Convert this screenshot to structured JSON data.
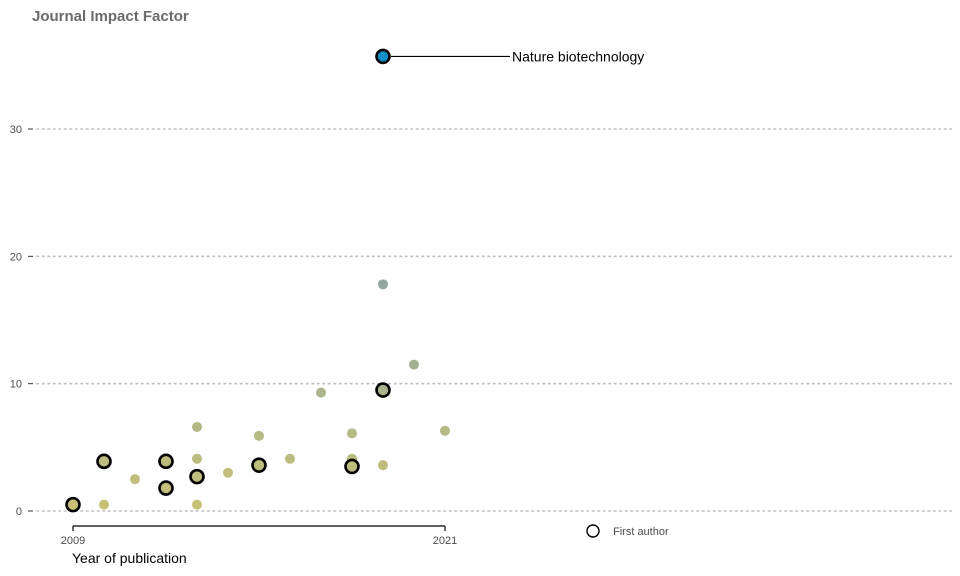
{
  "chart_data": {
    "type": "scatter",
    "title": "Journal Impact Factor",
    "xlabel": "Year of publication",
    "ylabel": "",
    "xlim": [
      2009,
      2021
    ],
    "ylim": [
      0,
      36
    ],
    "x_ticks": [
      2009,
      2021
    ],
    "y_ticks": [
      0,
      10,
      20,
      30
    ],
    "grid": "horizontal dotted",
    "color_scale": {
      "low": "#c8c276",
      "mid": "#8fa8a0",
      "high": "#0a8fc8"
    },
    "points": [
      {
        "x": 2009,
        "y": 0.5,
        "first_author": true
      },
      {
        "x": 2010,
        "y": 0.5,
        "first_author": false
      },
      {
        "x": 2010,
        "y": 3.9,
        "first_author": true
      },
      {
        "x": 2011,
        "y": 2.5,
        "first_author": false
      },
      {
        "x": 2012,
        "y": 1.8,
        "first_author": true
      },
      {
        "x": 2012,
        "y": 3.9,
        "first_author": true
      },
      {
        "x": 2012,
        "y": 3.7,
        "first_author": false
      },
      {
        "x": 2013,
        "y": 0.5,
        "first_author": false
      },
      {
        "x": 2013,
        "y": 2.7,
        "first_author": true
      },
      {
        "x": 2013,
        "y": 4.1,
        "first_author": false
      },
      {
        "x": 2013,
        "y": 6.6,
        "first_author": false
      },
      {
        "x": 2014,
        "y": 3.0,
        "first_author": false
      },
      {
        "x": 2015,
        "y": 3.6,
        "first_author": true
      },
      {
        "x": 2015,
        "y": 5.9,
        "first_author": false
      },
      {
        "x": 2016,
        "y": 4.1,
        "first_author": false
      },
      {
        "x": 2017,
        "y": 9.3,
        "first_author": false
      },
      {
        "x": 2018,
        "y": 3.5,
        "first_author": true
      },
      {
        "x": 2018,
        "y": 4.1,
        "first_author": false
      },
      {
        "x": 2018,
        "y": 6.1,
        "first_author": false
      },
      {
        "x": 2019,
        "y": 3.6,
        "first_author": false
      },
      {
        "x": 2019,
        "y": 9.5,
        "first_author": true
      },
      {
        "x": 2019,
        "y": 17.8,
        "first_author": false
      },
      {
        "x": 2019,
        "y": 35.7,
        "first_author": true
      },
      {
        "x": 2020,
        "y": 11.5,
        "first_author": false
      },
      {
        "x": 2021,
        "y": 6.3,
        "first_author": false
      }
    ],
    "annotations": [
      {
        "text": "Nature biotechnology",
        "x": 2019,
        "y": 35.7
      }
    ],
    "legend": {
      "label": "First author",
      "symbol": "open-circle",
      "position": "bottom-center"
    }
  }
}
